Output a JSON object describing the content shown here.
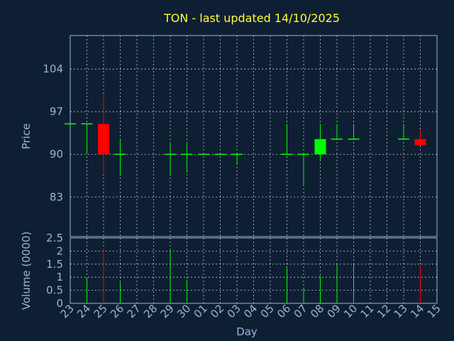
{
  "chart_data": {
    "type": "candlestick",
    "title": "TON - last updated 14/10/2025",
    "xlabel": "Day",
    "ylabel_price": "Price",
    "ylabel_volume": "Volume (0000)",
    "categories": [
      "23",
      "24",
      "25",
      "26",
      "27",
      "28",
      "29",
      "30",
      "01",
      "02",
      "03",
      "04",
      "05",
      "06",
      "07",
      "08",
      "09",
      "10",
      "11",
      "12",
      "13",
      "14",
      "15"
    ],
    "price_ticks": [
      "83",
      "90",
      "97",
      "104"
    ],
    "price_tick_values": [
      83,
      90,
      97,
      104
    ],
    "price_ylim": [
      76.5,
      109.5
    ],
    "volume_ticks": [
      "0",
      "0.5",
      "1",
      "1.5",
      "2",
      "2.5"
    ],
    "volume_tick_values": [
      0,
      0.5,
      1,
      1.5,
      2,
      2.5
    ],
    "volume_ylim": [
      0,
      2.5
    ],
    "grid": true,
    "up_color": "#00ff00",
    "down_color": "#ff0000",
    "candles": [
      {
        "day": "23",
        "open": 95.0,
        "close": 95.0,
        "high": 95.0,
        "low": 95.0,
        "volume": 0,
        "dir": "up"
      },
      {
        "day": "24",
        "open": 95.0,
        "close": 95.0,
        "high": 95.0,
        "low": 90.0,
        "volume": 1.0,
        "dir": "up"
      },
      {
        "day": "25",
        "open": 95.0,
        "close": 90.0,
        "high": 100.0,
        "low": 87.0,
        "volume": 2.1,
        "dir": "down"
      },
      {
        "day": "26",
        "open": 90.0,
        "close": 90.0,
        "high": 92.5,
        "low": 86.5,
        "volume": 0.8,
        "dir": "up"
      },
      {
        "day": "29",
        "open": 90.0,
        "close": 90.0,
        "high": 92.0,
        "low": 86.5,
        "volume": 2.1,
        "dir": "up"
      },
      {
        "day": "30",
        "open": 90.0,
        "close": 90.0,
        "high": 92.0,
        "low": 87.0,
        "volume": 0.9,
        "dir": "up"
      },
      {
        "day": "01",
        "open": 90.0,
        "close": 90.0,
        "high": 90.0,
        "low": 90.0,
        "volume": 0,
        "dir": "up"
      },
      {
        "day": "02",
        "open": 90.0,
        "close": 90.0,
        "high": 90.0,
        "low": 90.0,
        "volume": 0,
        "dir": "up"
      },
      {
        "day": "03",
        "open": 90.0,
        "close": 90.0,
        "high": 90.0,
        "low": 88.5,
        "volume": 0,
        "dir": "up"
      },
      {
        "day": "06",
        "open": 90.0,
        "close": 90.0,
        "high": 95.0,
        "low": 90.0,
        "volume": 1.35,
        "dir": "up"
      },
      {
        "day": "07",
        "open": 90.0,
        "close": 90.0,
        "high": 90.0,
        "low": 85.0,
        "volume": 0.6,
        "dir": "up"
      },
      {
        "day": "08",
        "open": 90.0,
        "close": 92.5,
        "high": 95.0,
        "low": 89.0,
        "volume": 1.05,
        "dir": "up"
      },
      {
        "day": "09",
        "open": 92.5,
        "close": 92.5,
        "high": 95.0,
        "low": 92.5,
        "volume": 1.55,
        "dir": "up"
      },
      {
        "day": "10",
        "open": 92.5,
        "close": 92.5,
        "high": 95.0,
        "low": 92.5,
        "volume": 1.55,
        "dir": "up"
      },
      {
        "day": "13",
        "open": 92.5,
        "close": 92.5,
        "high": 95.0,
        "low": 92.5,
        "volume": 0,
        "dir": "up"
      },
      {
        "day": "14",
        "open": 92.5,
        "close": 91.5,
        "high": 94.0,
        "low": 91.5,
        "volume": 1.45,
        "dir": "down"
      }
    ]
  }
}
